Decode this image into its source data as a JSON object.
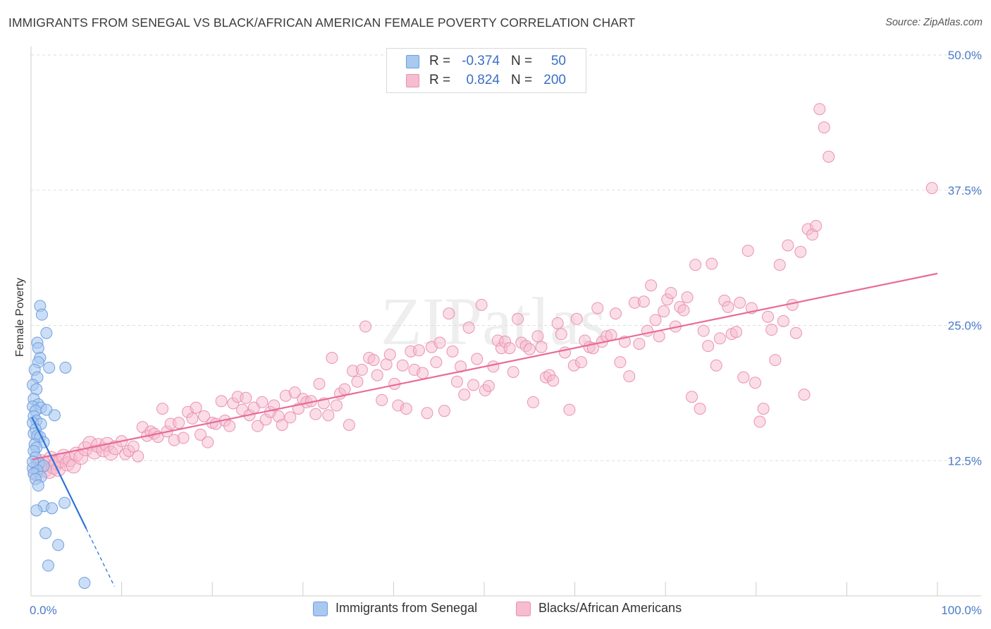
{
  "title": "IMMIGRANTS FROM SENEGAL VS BLACK/AFRICAN AMERICAN FEMALE POVERTY CORRELATION CHART",
  "source_label": "Source: ZipAtlas.com",
  "watermark": "ZIPatlas",
  "colors": {
    "blue_fill": "#a9c8f0",
    "blue_stroke": "#6f9fe0",
    "blue_line": "#2f73d6",
    "pink_fill": "#f6bcd0",
    "pink_stroke": "#ea92b2",
    "pink_line": "#e86b98",
    "tick_text": "#4a7bc8",
    "grid": "#dddddd"
  },
  "legend": {
    "rows": [
      {
        "r_label": "R =",
        "r_value": "-0.374",
        "n_label": "N =",
        "n_value": "50"
      },
      {
        "r_label": "R =",
        "r_value": "0.824",
        "n_label": "N =",
        "n_value": "200"
      }
    ]
  },
  "bottom_legend": {
    "series1": "Immigrants from Senegal",
    "series2": "Blacks/African Americans"
  },
  "chart_data": {
    "type": "scatter",
    "title": "IMMIGRANTS FROM SENEGAL VS BLACK/AFRICAN AMERICAN FEMALE POVERTY CORRELATION CHART",
    "xlabel": "",
    "ylabel": "Female Poverty",
    "xlim": [
      0,
      100
    ],
    "ylim": [
      0,
      50
    ],
    "x_tick_labels": [
      "0.0%",
      "100.0%"
    ],
    "y_ticks": [
      12.5,
      25.0,
      37.5,
      50.0
    ],
    "y_tick_labels": [
      "12.5%",
      "25.0%",
      "37.5%",
      "50.0%"
    ],
    "grid": true,
    "series": [
      {
        "name": "Immigrants from Senegal",
        "color": "blue",
        "R": -0.374,
        "N": 50,
        "trendline": {
          "x0": 0.1,
          "y0": 16.5,
          "x1": 6.1,
          "y1": 6.2,
          "dashed_to_x": 9.2
        },
        "points": [
          [
            1.0,
            26.8
          ],
          [
            1.2,
            26.0
          ],
          [
            1.7,
            24.3
          ],
          [
            0.7,
            23.4
          ],
          [
            0.8,
            22.9
          ],
          [
            1.0,
            22.0
          ],
          [
            0.8,
            21.6
          ],
          [
            2.0,
            21.1
          ],
          [
            3.8,
            21.1
          ],
          [
            0.4,
            20.9
          ],
          [
            0.7,
            20.2
          ],
          [
            0.2,
            19.5
          ],
          [
            0.6,
            19.1
          ],
          [
            0.3,
            18.2
          ],
          [
            0.8,
            17.7
          ],
          [
            0.2,
            17.5
          ],
          [
            1.1,
            17.4
          ],
          [
            0.5,
            17.1
          ],
          [
            1.7,
            17.2
          ],
          [
            2.6,
            16.7
          ],
          [
            0.3,
            16.6
          ],
          [
            0.6,
            16.2
          ],
          [
            0.2,
            16.0
          ],
          [
            1.1,
            15.9
          ],
          [
            0.5,
            15.4
          ],
          [
            0.3,
            15.0
          ],
          [
            0.7,
            14.8
          ],
          [
            1.0,
            14.7
          ],
          [
            1.4,
            14.2
          ],
          [
            0.4,
            14.0
          ],
          [
            0.6,
            13.7
          ],
          [
            0.3,
            13.4
          ],
          [
            0.5,
            12.8
          ],
          [
            0.9,
            12.3
          ],
          [
            1.4,
            12.0
          ],
          [
            0.2,
            11.8
          ],
          [
            0.7,
            11.6
          ],
          [
            0.3,
            11.3
          ],
          [
            1.1,
            11.0
          ],
          [
            0.5,
            10.8
          ],
          [
            0.8,
            10.2
          ],
          [
            3.7,
            8.6
          ],
          [
            1.4,
            8.3
          ],
          [
            2.3,
            8.1
          ],
          [
            0.6,
            7.9
          ],
          [
            1.6,
            5.8
          ],
          [
            3.0,
            4.7
          ],
          [
            1.9,
            2.8
          ],
          [
            5.9,
            1.2
          ],
          [
            0.2,
            12.4
          ]
        ]
      },
      {
        "name": "Blacks/African Americans",
        "color": "pink",
        "R": 0.824,
        "N": 200,
        "trendline": {
          "x0": 0.1,
          "y0": 12.6,
          "x1": 100,
          "y1": 29.8
        },
        "points": [
          [
            0.5,
            11.3
          ],
          [
            0.8,
            12.1
          ],
          [
            1.0,
            11.8
          ],
          [
            1.2,
            12.4
          ],
          [
            1.5,
            11.6
          ],
          [
            1.8,
            12.2
          ],
          [
            2.0,
            11.5
          ],
          [
            2.2,
            12.7
          ],
          [
            2.5,
            11.9
          ],
          [
            2.8,
            12.3
          ],
          [
            3.0,
            11.7
          ],
          [
            3.3,
            12.5
          ],
          [
            3.6,
            12.9
          ],
          [
            4.0,
            12.2
          ],
          [
            4.3,
            12.6
          ],
          [
            4.7,
            12.0
          ],
          [
            5.0,
            13.1
          ],
          [
            5.5,
            12.8
          ],
          [
            6.0,
            13.6
          ],
          [
            6.5,
            14.1
          ],
          [
            7.0,
            13.3
          ],
          [
            7.4,
            13.9
          ],
          [
            8.0,
            13.5
          ],
          [
            8.4,
            14.0
          ],
          [
            8.8,
            13.2
          ],
          [
            9.3,
            13.7
          ],
          [
            10.0,
            14.3
          ],
          [
            10.4,
            13.1
          ],
          [
            10.8,
            13.4
          ],
          [
            11.3,
            13.8
          ],
          [
            11.8,
            12.9
          ],
          [
            12.3,
            15.6
          ],
          [
            12.8,
            14.8
          ],
          [
            13.2,
            15.2
          ],
          [
            13.6,
            15.0
          ],
          [
            14.0,
            14.7
          ],
          [
            14.5,
            17.3
          ],
          [
            15.0,
            15.2
          ],
          [
            15.4,
            15.9
          ],
          [
            15.8,
            14.4
          ],
          [
            16.3,
            16.0
          ],
          [
            16.8,
            14.6
          ],
          [
            17.3,
            17.0
          ],
          [
            17.8,
            16.4
          ],
          [
            18.2,
            17.4
          ],
          [
            18.7,
            14.9
          ],
          [
            19.1,
            16.6
          ],
          [
            19.5,
            14.2
          ],
          [
            20.0,
            16.0
          ],
          [
            20.4,
            15.9
          ],
          [
            21.0,
            18.0
          ],
          [
            21.4,
            16.2
          ],
          [
            21.9,
            15.7
          ],
          [
            22.3,
            17.8
          ],
          [
            22.8,
            18.4
          ],
          [
            23.3,
            17.2
          ],
          [
            23.7,
            18.3
          ],
          [
            24.1,
            16.7
          ],
          [
            24.6,
            17.4
          ],
          [
            25.0,
            15.7
          ],
          [
            25.5,
            17.9
          ],
          [
            25.9,
            16.3
          ],
          [
            26.4,
            17.0
          ],
          [
            26.8,
            17.6
          ],
          [
            27.3,
            16.6
          ],
          [
            27.7,
            15.8
          ],
          [
            28.1,
            18.5
          ],
          [
            28.6,
            16.5
          ],
          [
            29.1,
            18.8
          ],
          [
            29.5,
            17.3
          ],
          [
            30.0,
            18.2
          ],
          [
            30.4,
            17.9
          ],
          [
            30.9,
            18.0
          ],
          [
            31.4,
            16.8
          ],
          [
            31.8,
            19.6
          ],
          [
            32.3,
            17.8
          ],
          [
            32.8,
            16.7
          ],
          [
            33.2,
            22.0
          ],
          [
            33.7,
            17.6
          ],
          [
            34.1,
            18.7
          ],
          [
            34.6,
            19.1
          ],
          [
            35.1,
            15.8
          ],
          [
            35.5,
            20.8
          ],
          [
            36.0,
            19.8
          ],
          [
            36.5,
            20.9
          ],
          [
            36.9,
            24.9
          ],
          [
            37.3,
            22.0
          ],
          [
            37.8,
            21.8
          ],
          [
            38.2,
            20.4
          ],
          [
            38.7,
            18.1
          ],
          [
            39.2,
            21.4
          ],
          [
            39.6,
            22.3
          ],
          [
            40.1,
            19.6
          ],
          [
            40.5,
            17.6
          ],
          [
            41.0,
            21.3
          ],
          [
            41.4,
            17.3
          ],
          [
            41.9,
            22.6
          ],
          [
            42.3,
            20.9
          ],
          [
            42.8,
            22.7
          ],
          [
            43.2,
            20.6
          ],
          [
            43.7,
            16.9
          ],
          [
            44.2,
            23.0
          ],
          [
            44.7,
            21.6
          ],
          [
            45.1,
            23.4
          ],
          [
            45.6,
            17.1
          ],
          [
            46.1,
            26.1
          ],
          [
            46.5,
            22.6
          ],
          [
            47.0,
            19.8
          ],
          [
            47.4,
            21.2
          ],
          [
            47.8,
            18.6
          ],
          [
            48.3,
            24.8
          ],
          [
            48.8,
            19.5
          ],
          [
            49.2,
            21.9
          ],
          [
            49.7,
            26.9
          ],
          [
            50.1,
            19.0
          ],
          [
            50.5,
            19.4
          ],
          [
            51.0,
            21.2
          ],
          [
            51.5,
            23.6
          ],
          [
            51.9,
            22.9
          ],
          [
            52.3,
            23.5
          ],
          [
            52.8,
            22.9
          ],
          [
            53.2,
            20.7
          ],
          [
            53.7,
            25.6
          ],
          [
            54.1,
            23.4
          ],
          [
            54.6,
            23.1
          ],
          [
            55.0,
            22.8
          ],
          [
            55.4,
            17.9
          ],
          [
            55.9,
            24.0
          ],
          [
            56.3,
            23.0
          ],
          [
            56.8,
            20.2
          ],
          [
            57.2,
            20.4
          ],
          [
            57.6,
            19.9
          ],
          [
            58.1,
            25.2
          ],
          [
            58.5,
            24.2
          ],
          [
            58.9,
            22.5
          ],
          [
            59.4,
            17.2
          ],
          [
            59.9,
            21.3
          ],
          [
            60.2,
            25.6
          ],
          [
            60.7,
            21.6
          ],
          [
            61.1,
            23.6
          ],
          [
            61.6,
            23.0
          ],
          [
            62.0,
            22.9
          ],
          [
            62.5,
            26.6
          ],
          [
            63.0,
            23.5
          ],
          [
            63.5,
            24.0
          ],
          [
            64.0,
            24.1
          ],
          [
            64.5,
            26.1
          ],
          [
            65.0,
            21.6
          ],
          [
            65.5,
            23.5
          ],
          [
            66.0,
            20.3
          ],
          [
            66.6,
            27.1
          ],
          [
            67.1,
            23.3
          ],
          [
            67.6,
            27.2
          ],
          [
            68.0,
            24.5
          ],
          [
            68.4,
            28.7
          ],
          [
            68.9,
            25.5
          ],
          [
            69.3,
            24.0
          ],
          [
            69.8,
            26.3
          ],
          [
            70.2,
            27.4
          ],
          [
            70.6,
            28.0
          ],
          [
            71.1,
            24.9
          ],
          [
            71.6,
            26.7
          ],
          [
            72.0,
            26.4
          ],
          [
            72.4,
            27.6
          ],
          [
            72.9,
            18.4
          ],
          [
            73.3,
            30.6
          ],
          [
            73.8,
            17.3
          ],
          [
            74.2,
            24.5
          ],
          [
            74.7,
            23.1
          ],
          [
            75.1,
            30.7
          ],
          [
            75.6,
            21.3
          ],
          [
            76.0,
            23.8
          ],
          [
            76.5,
            27.3
          ],
          [
            76.9,
            26.7
          ],
          [
            77.3,
            24.2
          ],
          [
            77.8,
            24.4
          ],
          [
            78.2,
            27.1
          ],
          [
            78.6,
            20.2
          ],
          [
            79.1,
            31.9
          ],
          [
            79.5,
            26.6
          ],
          [
            79.9,
            19.7
          ],
          [
            80.4,
            16.1
          ],
          [
            80.8,
            17.3
          ],
          [
            81.3,
            25.8
          ],
          [
            81.7,
            24.6
          ],
          [
            82.1,
            21.8
          ],
          [
            82.6,
            30.6
          ],
          [
            83.0,
            25.4
          ],
          [
            83.5,
            32.4
          ],
          [
            84.0,
            26.9
          ],
          [
            84.4,
            24.3
          ],
          [
            84.9,
            31.8
          ],
          [
            85.3,
            18.6
          ],
          [
            85.7,
            33.9
          ],
          [
            86.2,
            33.4
          ],
          [
            86.6,
            34.2
          ],
          [
            87.0,
            45.0
          ],
          [
            87.5,
            43.3
          ],
          [
            88.0,
            40.6
          ],
          [
            99.4,
            37.7
          ]
        ]
      }
    ]
  }
}
